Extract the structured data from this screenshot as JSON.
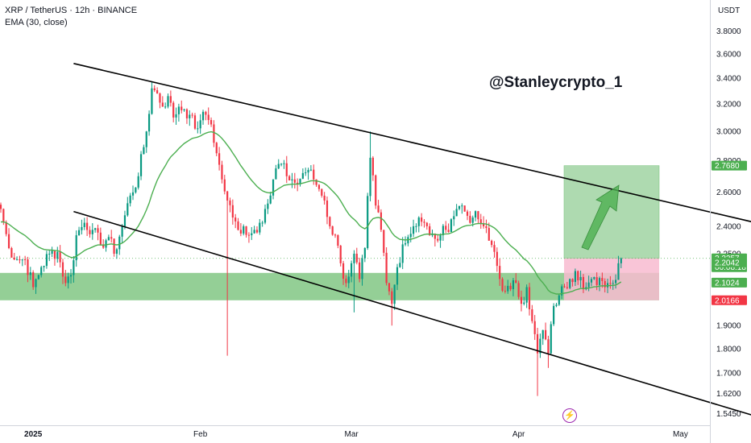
{
  "header": {
    "symbol_line": "XRP / TetherUS · 12h · BINANCE",
    "indicator_line": "EMA (30, close)"
  },
  "watermark": "@Stanleycrypto_1",
  "price_axis": {
    "currency": "USDT",
    "ticks": [
      "3.8000",
      "3.6000",
      "3.4000",
      "3.2000",
      "3.0000",
      "2.8000",
      "2.6000",
      "2.4000",
      "2.2500",
      "2.1000",
      "1.9000",
      "1.8000",
      "1.7000",
      "1.6200",
      "1.5450"
    ]
  },
  "price_badges": [
    {
      "text": "2.7680",
      "value": 2.768,
      "color": "#4caf50"
    },
    {
      "text": "2.2257",
      "value": 2.2257,
      "color": "#4caf50"
    },
    {
      "text": "06:08:18",
      "value": 2.2257,
      "color": "#4caf50",
      "sub": true
    },
    {
      "text": "2.2042",
      "value": 2.2042,
      "color": "#4caf50"
    },
    {
      "text": "2.1024",
      "value": 2.1024,
      "color": "#4caf50"
    },
    {
      "text": "2.0166",
      "value": 2.0166,
      "color": "#f23645"
    }
  ],
  "time_axis": {
    "labels": [
      {
        "text": "2025",
        "bold": true,
        "index": 12
      },
      {
        "text": "Feb",
        "bold": false,
        "index": 74
      },
      {
        "text": "Mar",
        "bold": false,
        "index": 130
      },
      {
        "text": "Apr",
        "bold": false,
        "index": 192
      },
      {
        "text": "May",
        "bold": false,
        "index": 252
      }
    ]
  },
  "colors": {
    "up": "#26a69a",
    "up_candle": "#089981",
    "down": "#f23645",
    "ema": "#4caf50",
    "support_zone": "#81c784",
    "target_zone": "#a5d6a7",
    "stop_zone": "#f8bbd0",
    "trendline": "#000000"
  },
  "chart_data": {
    "type": "candlestick",
    "symbol": "XRP / TetherUS",
    "interval": "12h",
    "exchange": "BINANCE",
    "indicator": "EMA (30, close)",
    "y_scale": "log",
    "ylim": [
      1.52,
      3.95
    ],
    "last_price": 2.2257,
    "support_zone": [
      2.0166,
      2.1024
    ],
    "trade_setup": {
      "entry": 2.2257,
      "target": 2.768,
      "stop": 2.0166
    },
    "trendline_upper": [
      [
        27,
        3.52
      ],
      [
        280,
        2.42
      ]
    ],
    "trendline_lower": [
      [
        27,
        2.485
      ],
      [
        280,
        1.535
      ]
    ],
    "trend_arrow": {
      "from": [
        245,
        2.3
      ],
      "to": [
        260,
        2.62
      ]
    },
    "x_range": [
      0,
      280
    ],
    "candle_count": 243,
    "anchors": [
      [
        0,
        2.5
      ],
      [
        3,
        2.28
      ],
      [
        6,
        2.22
      ],
      [
        9,
        2.22
      ],
      [
        12,
        2.08
      ],
      [
        15,
        2.18
      ],
      [
        18,
        2.25
      ],
      [
        21,
        2.26
      ],
      [
        24,
        2.1
      ],
      [
        26,
        2.14
      ],
      [
        28,
        2.35
      ],
      [
        31,
        2.42
      ],
      [
        34,
        2.38
      ],
      [
        37,
        2.3
      ],
      [
        40,
        2.34
      ],
      [
        42,
        2.25
      ],
      [
        45,
        2.4
      ],
      [
        48,
        2.58
      ],
      [
        51,
        2.7
      ],
      [
        54,
        3.0
      ],
      [
        56,
        3.32
      ],
      [
        58,
        3.28
      ],
      [
        60,
        3.18
      ],
      [
        62,
        3.26
      ],
      [
        64,
        3.1
      ],
      [
        66,
        3.18
      ],
      [
        68,
        3.16
      ],
      [
        70,
        3.12
      ],
      [
        72,
        3.02
      ],
      [
        74,
        3.08
      ],
      [
        76,
        3.12
      ],
      [
        78,
        3.05
      ],
      [
        80,
        2.85
      ],
      [
        82,
        2.68
      ],
      [
        84,
        2.55
      ],
      [
        86,
        2.45
      ],
      [
        88,
        2.38
      ],
      [
        90,
        2.4
      ],
      [
        92,
        2.35
      ],
      [
        94,
        2.38
      ],
      [
        96,
        2.42
      ],
      [
        98,
        2.5
      ],
      [
        100,
        2.58
      ],
      [
        102,
        2.75
      ],
      [
        104,
        2.78
      ],
      [
        106,
        2.7
      ],
      [
        108,
        2.68
      ],
      [
        110,
        2.65
      ],
      [
        112,
        2.72
      ],
      [
        114,
        2.74
      ],
      [
        116,
        2.68
      ],
      [
        118,
        2.62
      ],
      [
        120,
        2.55
      ],
      [
        122,
        2.4
      ],
      [
        124,
        2.35
      ],
      [
        126,
        2.2
      ],
      [
        128,
        2.1
      ],
      [
        130,
        2.2
      ],
      [
        131,
        2.25
      ],
      [
        133,
        2.12
      ],
      [
        135,
        2.28
      ],
      [
        137,
        2.82
      ],
      [
        139,
        2.52
      ],
      [
        141,
        2.38
      ],
      [
        143,
        2.1
      ],
      [
        145,
        2.0
      ],
      [
        147,
        2.18
      ],
      [
        149,
        2.3
      ],
      [
        151,
        2.34
      ],
      [
        153,
        2.4
      ],
      [
        155,
        2.45
      ],
      [
        157,
        2.42
      ],
      [
        159,
        2.35
      ],
      [
        161,
        2.33
      ],
      [
        163,
        2.35
      ],
      [
        165,
        2.38
      ],
      [
        167,
        2.44
      ],
      [
        169,
        2.5
      ],
      [
        171,
        2.52
      ],
      [
        173,
        2.46
      ],
      [
        175,
        2.45
      ],
      [
        177,
        2.44
      ],
      [
        179,
        2.4
      ],
      [
        181,
        2.32
      ],
      [
        183,
        2.26
      ],
      [
        185,
        2.12
      ],
      [
        187,
        2.06
      ],
      [
        189,
        2.07
      ],
      [
        191,
        2.1
      ],
      [
        193,
        2.0
      ],
      [
        195,
        2.08
      ],
      [
        197,
        1.92
      ],
      [
        199,
        1.78
      ],
      [
        201,
        1.88
      ],
      [
        203,
        1.78
      ],
      [
        205,
        1.99
      ],
      [
        207,
        2.04
      ],
      [
        209,
        2.08
      ],
      [
        211,
        2.12
      ],
      [
        213,
        2.16
      ],
      [
        215,
        2.13
      ],
      [
        217,
        2.08
      ],
      [
        219,
        2.12
      ],
      [
        221,
        2.09
      ],
      [
        223,
        2.11
      ],
      [
        225,
        2.1
      ],
      [
        227,
        2.1
      ],
      [
        229,
        2.2
      ],
      [
        230,
        2.2257
      ]
    ],
    "notable_wicks": [
      {
        "index": 84,
        "low": 1.77
      },
      {
        "index": 137,
        "high": 3.0
      },
      {
        "index": 131,
        "low": 1.96
      },
      {
        "index": 145,
        "low": 1.9
      },
      {
        "index": 199,
        "low": 1.61
      },
      {
        "index": 203,
        "low": 1.72
      }
    ]
  }
}
